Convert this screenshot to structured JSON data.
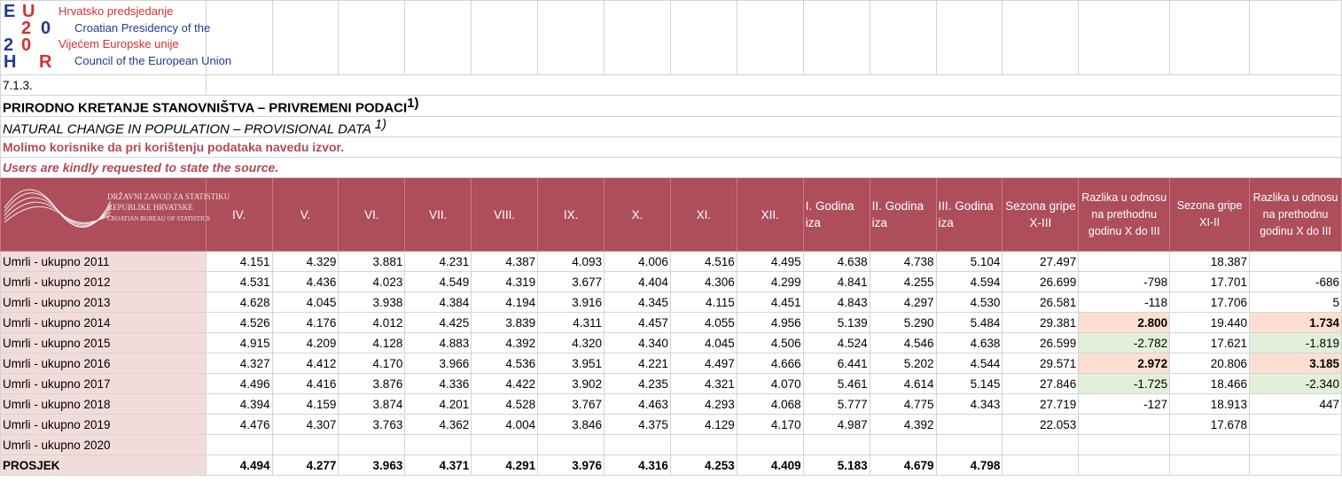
{
  "logo": {
    "mark": [
      "E",
      "U",
      "2",
      "0",
      "2",
      "0",
      "H",
      "R"
    ],
    "lines": [
      "Hrvatsko predsjedanje",
      "Croatian Presidency of the",
      "Vijećem Europske unije",
      "Council of the European Union"
    ]
  },
  "section": "7.1.3.",
  "title_hr": "PRIRODNO KRETANJE STANOVNIŠTVA – PRIVREMENI PODACI",
  "title_en": "NATURAL CHANGE IN POPULATION – PROVISIONAL DATA",
  "footnote_mark": "1)",
  "note_hr": "Molimo korisnike da pri korištenju podataka navedu izvor.",
  "note_en": "Users are kindly requested to state the source.",
  "dzs_logo": [
    "DRŽAVNI ZAVOD ZA STATISTIKU",
    "REPUBLIKE HRVATSKE",
    "CROATIAN BUREAU OF STATISTICS"
  ],
  "headers": [
    "IV.",
    "V.",
    "VI.",
    "VII.",
    "VIII.",
    "IX.",
    "X.",
    "XI.",
    "XII.",
    "I.  Godina iza",
    "II.  Godina iza",
    "III.  Godina iza",
    "Sezona gripe X-III",
    "Razlika u odnosu na prethodnu godinu X do III",
    "Sezona gripe XI-II",
    "Razlika u odnosu na prethodnu godinu X do III"
  ],
  "rows": [
    {
      "label": "Umrli - ukupno 2011",
      "v": [
        "4.151",
        "4.329",
        "3.881",
        "4.231",
        "4.387",
        "4.093",
        "4.006",
        "4.516",
        "4.495",
        "4.638",
        "4.738",
        "5.104",
        "27.497",
        "",
        "18.387",
        ""
      ]
    },
    {
      "label": "Umrli - ukupno 2012",
      "v": [
        "4.531",
        "4.436",
        "4.023",
        "4.549",
        "4.319",
        "3.677",
        "4.404",
        "4.306",
        "4.299",
        "4.841",
        "4.255",
        "4.594",
        "26.699",
        "-798",
        "17.701",
        "-686"
      ]
    },
    {
      "label": "Umrli - ukupno 2013",
      "v": [
        "4.628",
        "4.045",
        "3.938",
        "4.384",
        "4.194",
        "3.916",
        "4.345",
        "4.115",
        "4.451",
        "4.843",
        "4.297",
        "4.530",
        "26.581",
        "-118",
        "17.706",
        "5"
      ]
    },
    {
      "label": "Umrli - ukupno 2014",
      "v": [
        "4.526",
        "4.176",
        "4.012",
        "4.425",
        "3.839",
        "4.311",
        "4.457",
        "4.055",
        "4.956",
        "5.139",
        "5.290",
        "5.484",
        "29.381",
        "2.800",
        "19.440",
        "1.734"
      ]
    },
    {
      "label": "Umrli - ukupno 2015",
      "v": [
        "4.915",
        "4.209",
        "4.128",
        "4.883",
        "4.392",
        "4.320",
        "4.340",
        "4.045",
        "4.506",
        "4.524",
        "4.546",
        "4.638",
        "26.599",
        "-2.782",
        "17.621",
        "-1.819"
      ]
    },
    {
      "label": "Umrli - ukupno 2016",
      "v": [
        "4.327",
        "4.412",
        "4.170",
        "3.966",
        "4.536",
        "3.951",
        "4.221",
        "4.497",
        "4.666",
        "6.441",
        "5.202",
        "4.544",
        "29.571",
        "2.972",
        "20.806",
        "3.185"
      ]
    },
    {
      "label": "Umrli - ukupno 2017",
      "v": [
        "4.496",
        "4.416",
        "3.876",
        "4.336",
        "4.422",
        "3.902",
        "4.235",
        "4.321",
        "4.070",
        "5.461",
        "4.614",
        "5.145",
        "27.846",
        "-1.725",
        "18.466",
        "-2.340"
      ]
    },
    {
      "label": "Umrli - ukupno 2018",
      "v": [
        "4.394",
        "4.159",
        "3.874",
        "4.201",
        "4.528",
        "3.767",
        "4.463",
        "4.293",
        "4.068",
        "5.777",
        "4.775",
        "4.343",
        "27.719",
        "-127",
        "18.913",
        "447"
      ]
    },
    {
      "label": "Umrli - ukupno 2019",
      "v": [
        "4.476",
        "4.307",
        "3.763",
        "4.362",
        "4.004",
        "3.846",
        "4.375",
        "4.129",
        "4.170",
        "4.987",
        "4.392",
        "",
        "22.053",
        "",
        "17.678",
        ""
      ]
    },
    {
      "label": "Umrli - ukupno 2020",
      "v": [
        "",
        "",
        "",
        "",
        "",
        "",
        "",
        "",
        "",
        "",
        "",
        "",
        "",
        "",
        "",
        ""
      ]
    }
  ],
  "average": {
    "label": "PROSJEK",
    "v": [
      "4.494",
      "4.277",
      "3.963",
      "4.371",
      "4.291",
      "3.976",
      "4.316",
      "4.253",
      "4.409",
      "5.183",
      "4.679",
      "4.798",
      "",
      "",
      "",
      ""
    ]
  },
  "highlights": {
    "positive": [
      "3-13",
      "5-13",
      "3-15",
      "5-15"
    ],
    "negative": [
      "4-13",
      "6-13",
      "4-15",
      "6-15"
    ]
  },
  "colors": {
    "header_bg": "#ae4e5a",
    "label_bg": "#f2dcdb",
    "positive_bg": "#fcdfd2",
    "negative_bg": "#e2efda",
    "note": "#b04a55"
  }
}
